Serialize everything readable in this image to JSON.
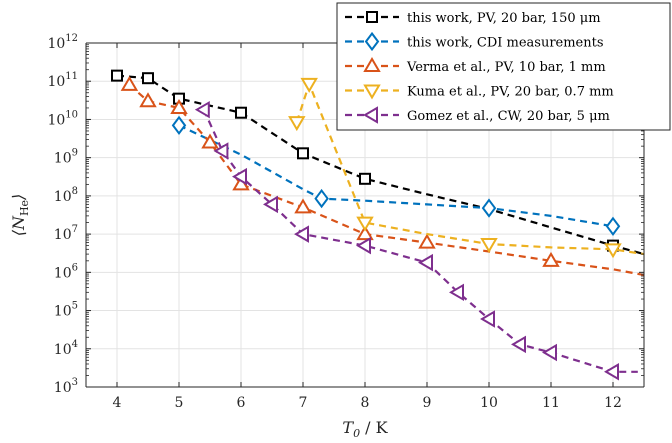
{
  "chart_data": {
    "type": "line",
    "xlabel": "T₀ / K",
    "ylabel": "⟨N_He⟩",
    "ylabel_parts": {
      "main": "⟨N",
      "sub": "He",
      "close": "⟩"
    },
    "xlabel_parts": {
      "main": "T",
      "sub": "0",
      "unit": " / K"
    },
    "xlim": [
      3.5,
      12.5
    ],
    "ylim": [
      1000,
      1000000000000
    ],
    "yscale": "log",
    "grid": true,
    "legend_position": "top-right",
    "xticks": [
      4,
      5,
      6,
      7,
      8,
      9,
      10,
      11,
      12
    ],
    "xtick_labels": [
      "4",
      "5",
      "6",
      "7",
      "8",
      "9",
      "10",
      "11",
      "12"
    ],
    "yticks": [
      3,
      4,
      5,
      6,
      7,
      8,
      9,
      10,
      11,
      12
    ],
    "ytick_base": "10",
    "ytick_exponents": [
      "3",
      "4",
      "5",
      "6",
      "7",
      "8",
      "9",
      "10",
      "11",
      "12"
    ],
    "series": [
      {
        "name": "this work, PV, 20 bar, 150 μm",
        "color": "#000000",
        "marker": "square",
        "x": [
          4,
          4.5,
          5,
          6,
          7,
          8,
          12
        ],
        "y": [
          140000000000,
          120000000000,
          35000000000,
          15000000000,
          1300000000,
          280000000,
          5000000
        ],
        "line_x": [
          4,
          4.5,
          5,
          6,
          7,
          8,
          9,
          10,
          11,
          12,
          12.5
        ],
        "line_y": [
          140000000000,
          120000000000,
          35000000000,
          15000000000,
          1300000000,
          280000000,
          110000000,
          45000000,
          15000000,
          5000000,
          3000000
        ]
      },
      {
        "name": "this work, CDI measurements",
        "color": "#0072BD",
        "marker": "diamond",
        "x": [
          5,
          7.3,
          10,
          12
        ],
        "y": [
          7000000000,
          85000000,
          48000000,
          16000000
        ],
        "line_x": [
          5,
          6,
          7,
          7.3,
          8,
          9,
          10,
          11,
          12
        ],
        "line_y": [
          7000000000,
          1200000000,
          150000000,
          85000000,
          75000000,
          60000000,
          48000000,
          30000000,
          16000000
        ]
      },
      {
        "name": "Verma et al., PV, 10 bar, 1 mm",
        "color": "#D95319",
        "marker": "triangle-up",
        "x": [
          4.2,
          4.5,
          5,
          5.5,
          6,
          7,
          8,
          9,
          11
        ],
        "y": [
          80000000000,
          30000000000,
          20000000000,
          2500000000,
          200000000,
          50000000,
          10000000,
          6000000,
          2000000
        ],
        "line_x": [
          4.2,
          4.5,
          5,
          5.5,
          6,
          7,
          8,
          9,
          10,
          11,
          12,
          12.5
        ],
        "line_y": [
          80000000000,
          30000000000,
          20000000000,
          2500000000,
          200000000,
          50000000,
          10000000,
          6000000,
          3500000,
          2000000,
          1200000,
          850000
        ]
      },
      {
        "name": "Kuma et al., PV, 20 bar, 0.7 mm",
        "color": "#EDB120",
        "marker": "triangle-down",
        "x": [
          6.9,
          7.1,
          8,
          10,
          12
        ],
        "y": [
          8500000000,
          85000000000,
          20000000,
          5500000,
          4000000
        ],
        "line_x": [
          6.9,
          7.1,
          8,
          9,
          10,
          11,
          12,
          12.5
        ],
        "line_y": [
          8500000000,
          85000000000,
          20000000,
          10000000,
          5500000,
          4500000,
          4000000,
          3000000
        ]
      },
      {
        "name": "Gomez et al., CW, 20 bar, 5 μm",
        "color": "#7E2F8E",
        "marker": "triangle-left",
        "x": [
          5.4,
          5.7,
          6,
          6.5,
          7,
          8,
          9,
          9.5,
          10,
          10.5,
          11,
          12
        ],
        "y": [
          18000000000,
          1500000000,
          320000000,
          60000000,
          10000000,
          5000000,
          1800000,
          300000,
          60000,
          13000,
          8000,
          2500
        ],
        "line_x": [
          5.4,
          5.7,
          6,
          6.5,
          7,
          8,
          9,
          9.5,
          10,
          10.5,
          11,
          12,
          12.4
        ],
        "line_y": [
          18000000000,
          1500000000,
          320000000,
          60000000,
          10000000,
          5000000,
          1800000,
          300000,
          60000,
          13000,
          8000,
          2500,
          2500
        ]
      }
    ]
  }
}
